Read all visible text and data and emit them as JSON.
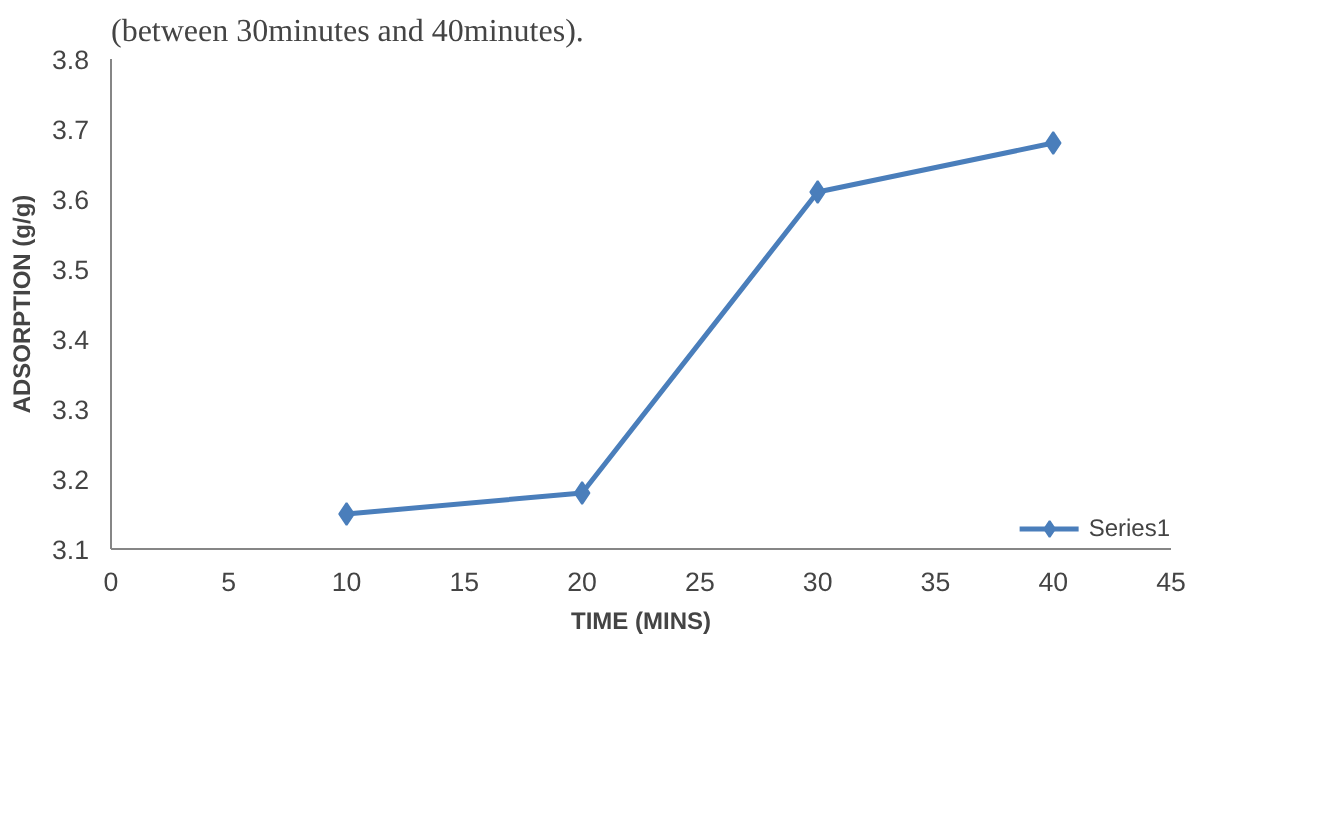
{
  "chart_data": {
    "type": "line",
    "xlabel": "TIME (MINS)",
    "ylabel": "ADSORPTION (g/g)",
    "annotations": [
      "(between 30minutes and 40minutes)."
    ],
    "x": [
      10,
      20,
      30,
      40
    ],
    "series": [
      {
        "name": "Series1",
        "color": "#4a7ebb",
        "values": [
          3.15,
          3.18,
          3.61,
          3.68
        ]
      }
    ],
    "xlim": [
      0,
      45
    ],
    "xticks": [
      0,
      5,
      10,
      15,
      20,
      25,
      30,
      35,
      40,
      45
    ],
    "ylim": [
      3.1,
      3.8
    ],
    "yticks": [
      3.1,
      3.2,
      3.3,
      3.4,
      3.5,
      3.6,
      3.7,
      3.8
    ],
    "grid": false,
    "legend": "bottom right",
    "marker": "diamond",
    "line_style": "solid"
  }
}
